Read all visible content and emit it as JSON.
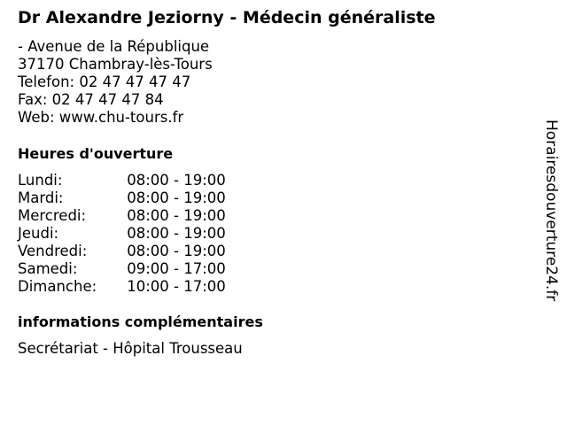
{
  "title": "Dr Alexandre Jeziorny - Médecin généraliste",
  "address": {
    "street": "- Avenue de la République",
    "city": "37170 Chambray-lès-Tours",
    "phone": "Telefon: 02 47 47 47 47",
    "fax": "Fax: 02 47 47 47 84",
    "web": "Web: www.chu-tours.fr"
  },
  "hours_heading": "Heures d'ouverture",
  "hours": [
    {
      "day": "Lundi:",
      "time": "08:00 - 19:00"
    },
    {
      "day": "Mardi:",
      "time": "08:00 - 19:00"
    },
    {
      "day": "Mercredi:",
      "time": "08:00 - 19:00"
    },
    {
      "day": "Jeudi:",
      "time": "08:00 - 19:00"
    },
    {
      "day": "Vendredi:",
      "time": "08:00 - 19:00"
    },
    {
      "day": "Samedi:",
      "time": "09:00 - 17:00"
    },
    {
      "day": "Dimanche:",
      "time": "10:00 - 17:00"
    }
  ],
  "info_heading": "informations complémentaires",
  "info_text": "Secrétariat - Hôpital Trousseau",
  "watermark": "Horairesdouverture24.fr"
}
